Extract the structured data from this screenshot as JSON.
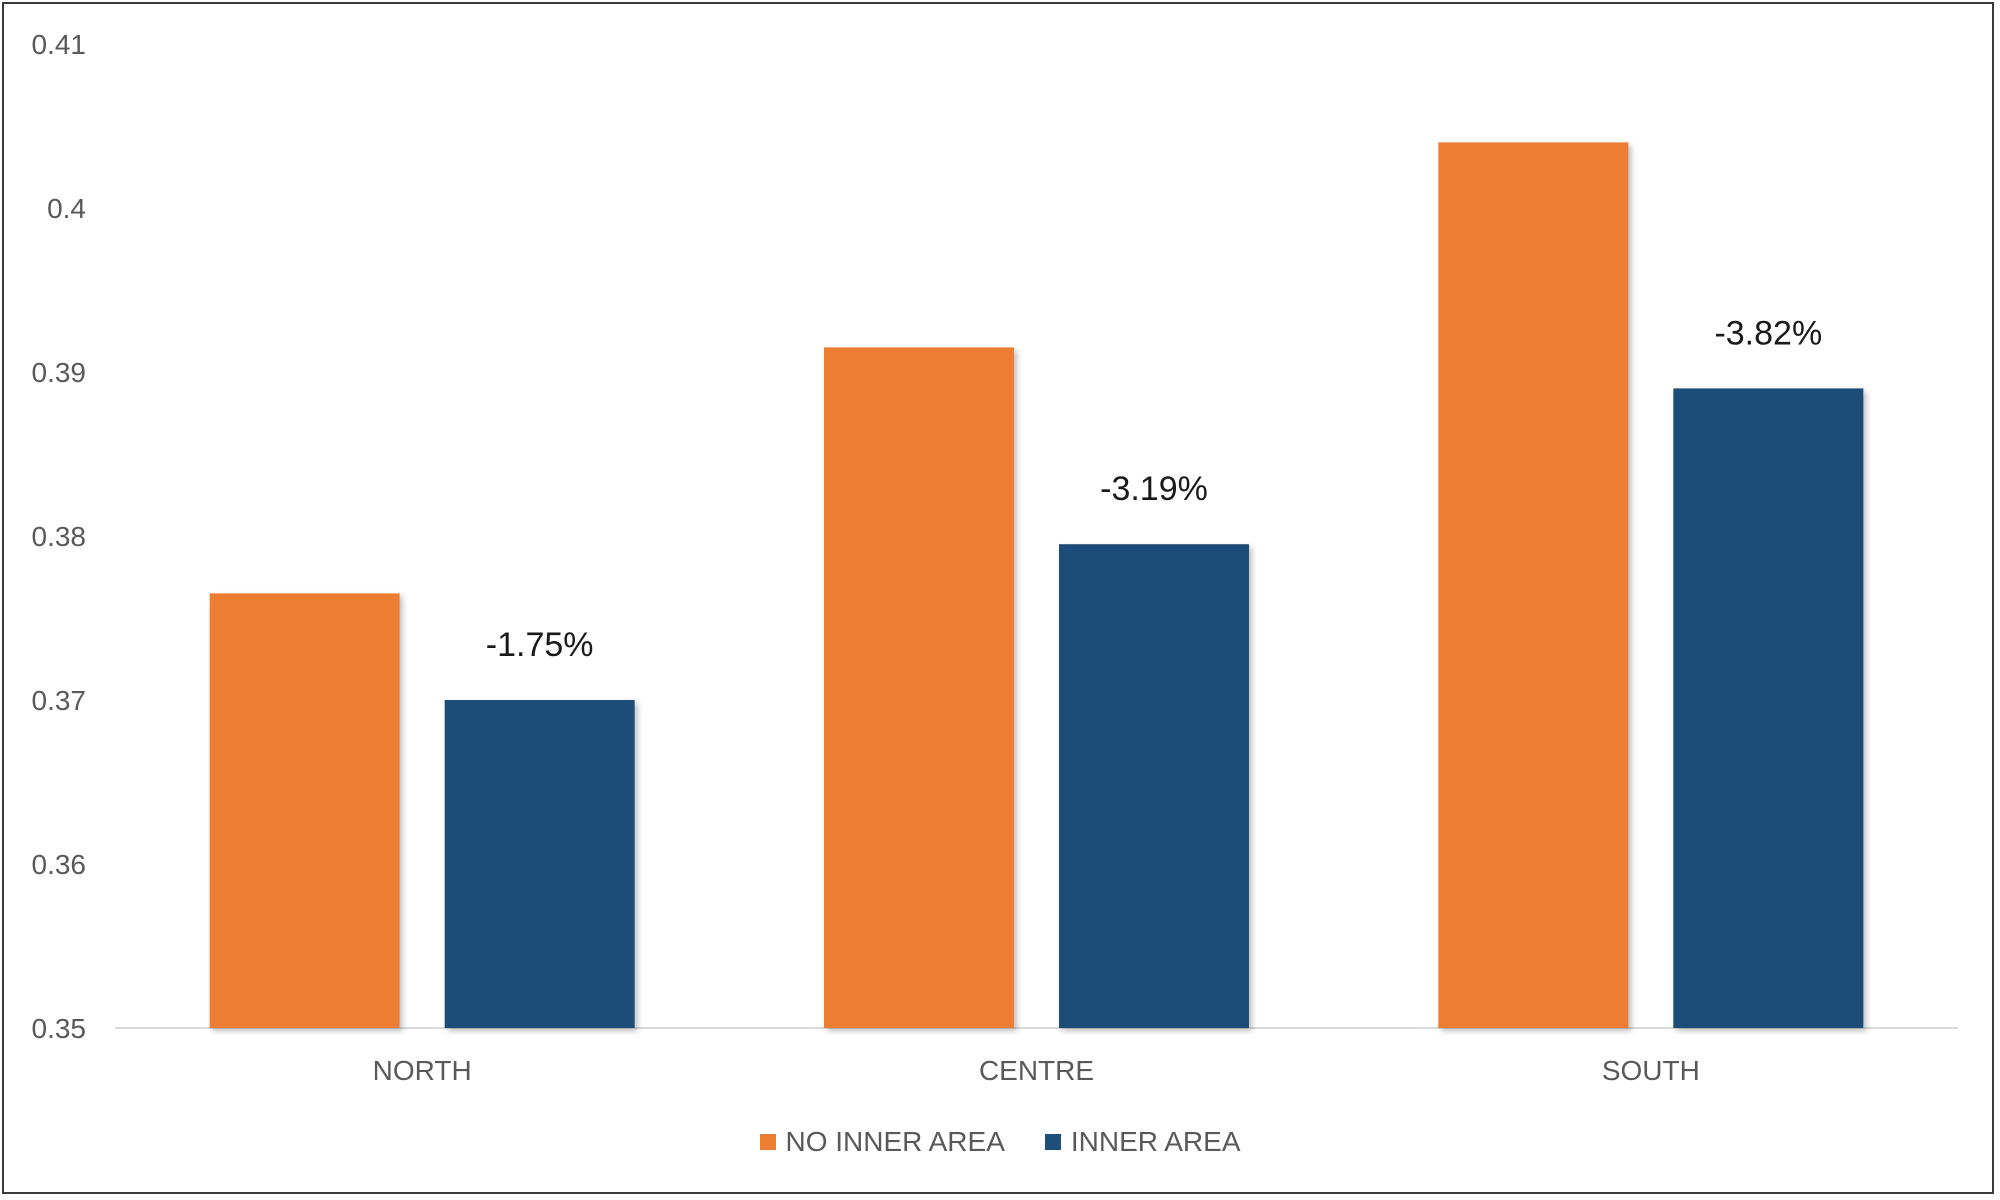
{
  "chart_data": {
    "type": "bar",
    "title": "",
    "xlabel": "",
    "ylabel": "",
    "categories": [
      "NORTH",
      "CENTRE",
      "SOUTH"
    ],
    "series": [
      {
        "name": "NO INNER AREA",
        "color": "#ED7D31",
        "values": [
          0.3765,
          0.3915,
          0.404
        ]
      },
      {
        "name": "INNER AREA",
        "color": "#1F4E79",
        "values": [
          0.37,
          0.3795,
          0.389
        ]
      }
    ],
    "data_labels": [
      "-1.75%",
      "-3.19%",
      "-3.82%"
    ],
    "ylim": [
      0.35,
      0.41
    ],
    "yticks": [
      "0.35",
      "0.36",
      "0.37",
      "0.38",
      "0.39",
      "0.4",
      "0.41"
    ],
    "grid": false,
    "legend_position": "bottom"
  }
}
